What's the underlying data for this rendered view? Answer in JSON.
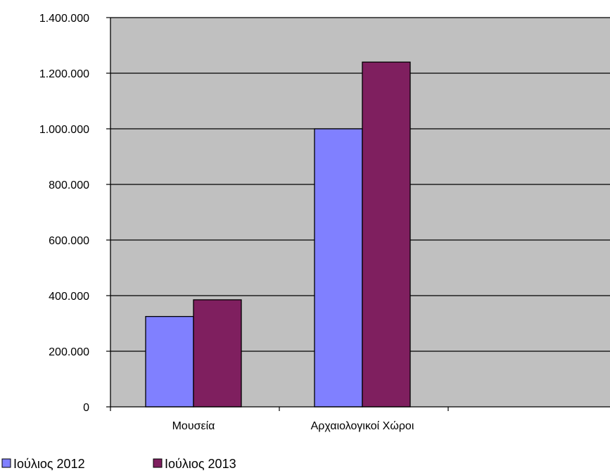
{
  "chart_data": {
    "type": "bar",
    "categories": [
      "Μουσεία",
      "Αρχαιολογικοί Χώροι"
    ],
    "series": [
      {
        "name": "Ιούλιος 2012",
        "values": [
          325000,
          1000000
        ],
        "color": "#8080ff"
      },
      {
        "name": "Ιούλιος 2013",
        "values": [
          385000,
          1240000
        ],
        "color": "#7f1f5f"
      }
    ],
    "ylim": [
      0,
      1400000
    ],
    "y_ticks": [
      0,
      200000,
      400000,
      600000,
      800000,
      1000000,
      1200000,
      1400000
    ],
    "y_tick_labels": [
      "0",
      "200.000",
      "400.000",
      "600.000",
      "800.000",
      "1.000.000",
      "1.200.000",
      "1.400.000"
    ],
    "grid": true,
    "plot_background": "#c0c0c0",
    "legend_position": "bottom-left",
    "title": "",
    "xlabel": "",
    "ylabel": ""
  }
}
